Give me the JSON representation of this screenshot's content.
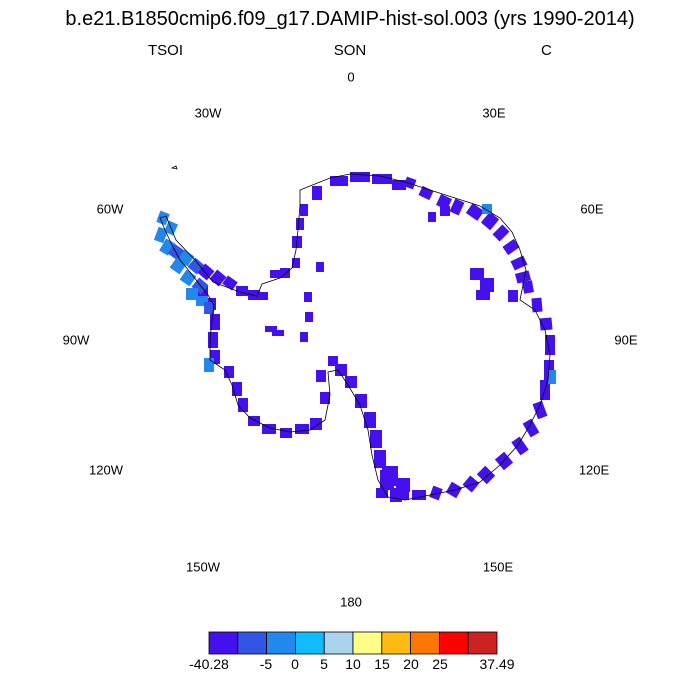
{
  "title": "b.e21.B1850cmip6.f09_g17.DAMIP-hist-sol.003 (yrs 1990-2014)",
  "variable": "TSOI",
  "season": "SON",
  "units": "C",
  "longitude_labels": [
    {
      "id": "0",
      "text": "0"
    },
    {
      "id": "30E",
      "text": "30E"
    },
    {
      "id": "60E",
      "text": "60E"
    },
    {
      "id": "90E",
      "text": "90E"
    },
    {
      "id": "120E",
      "text": "120E"
    },
    {
      "id": "150E",
      "text": "150E"
    },
    {
      "id": "180",
      "text": "180"
    },
    {
      "id": "150W",
      "text": "150W"
    },
    {
      "id": "120W",
      "text": "120W"
    },
    {
      "id": "90W",
      "text": "90W"
    },
    {
      "id": "60W",
      "text": "60W"
    },
    {
      "id": "30W",
      "text": "30W"
    }
  ],
  "colorbar": {
    "colors": [
      "#4411ee",
      "#3355e6",
      "#2288ee",
      "#11bbff",
      "#aad4ee",
      "#ffff88",
      "#ffbb11",
      "#ff7700",
      "#ff0000",
      "#cc2222"
    ],
    "labels": [
      "-40.28",
      "-5",
      "0",
      "5",
      "10",
      "15",
      "20",
      "25",
      "37.49"
    ]
  },
  "map_colors": {
    "interior": "#4411ee",
    "peninsula_light": "#2288ee",
    "peninsula_mid": "#3355e6",
    "coastline": "#000000"
  }
}
